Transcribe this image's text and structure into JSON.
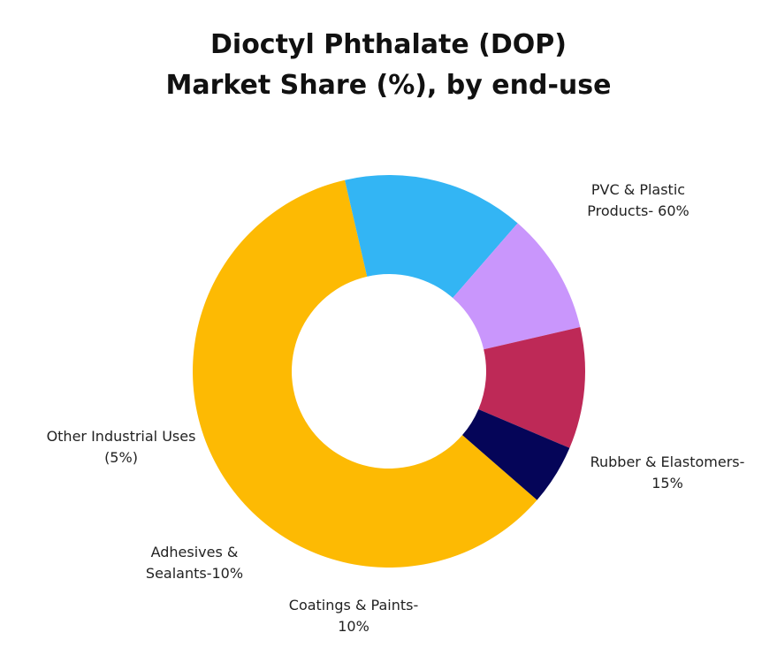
{
  "chart_data": {
    "type": "pie",
    "donut": true,
    "title_lines": [
      "Dioctyl Phthalate (DOP)",
      "Market Share (%), by end-use"
    ],
    "slices": [
      {
        "name": "PVC & Plastic Products",
        "value": 60,
        "color": "#FDBA03",
        "label_lines": [
          "PVC & Plastic",
          "Products- 60%"
        ]
      },
      {
        "name": "Rubber & Elastomers",
        "value": 15,
        "color": "#33B5F4",
        "label_lines": [
          "Rubber & Elastomers-",
          "15%"
        ]
      },
      {
        "name": "Coatings & Paints",
        "value": 10,
        "color": "#C996FC",
        "label_lines": [
          "Coatings & Paints-",
          "10%"
        ]
      },
      {
        "name": "Adhesives & Sealants",
        "value": 10,
        "color": "#BE2957",
        "label_lines": [
          "Adhesives &",
          "Sealants-10%"
        ]
      },
      {
        "name": "Other Industrial Uses",
        "value": 5,
        "color": "#050558",
        "label_lines": [
          "Other Industrial Uses",
          "(5%)"
        ]
      }
    ],
    "legend": "none"
  }
}
